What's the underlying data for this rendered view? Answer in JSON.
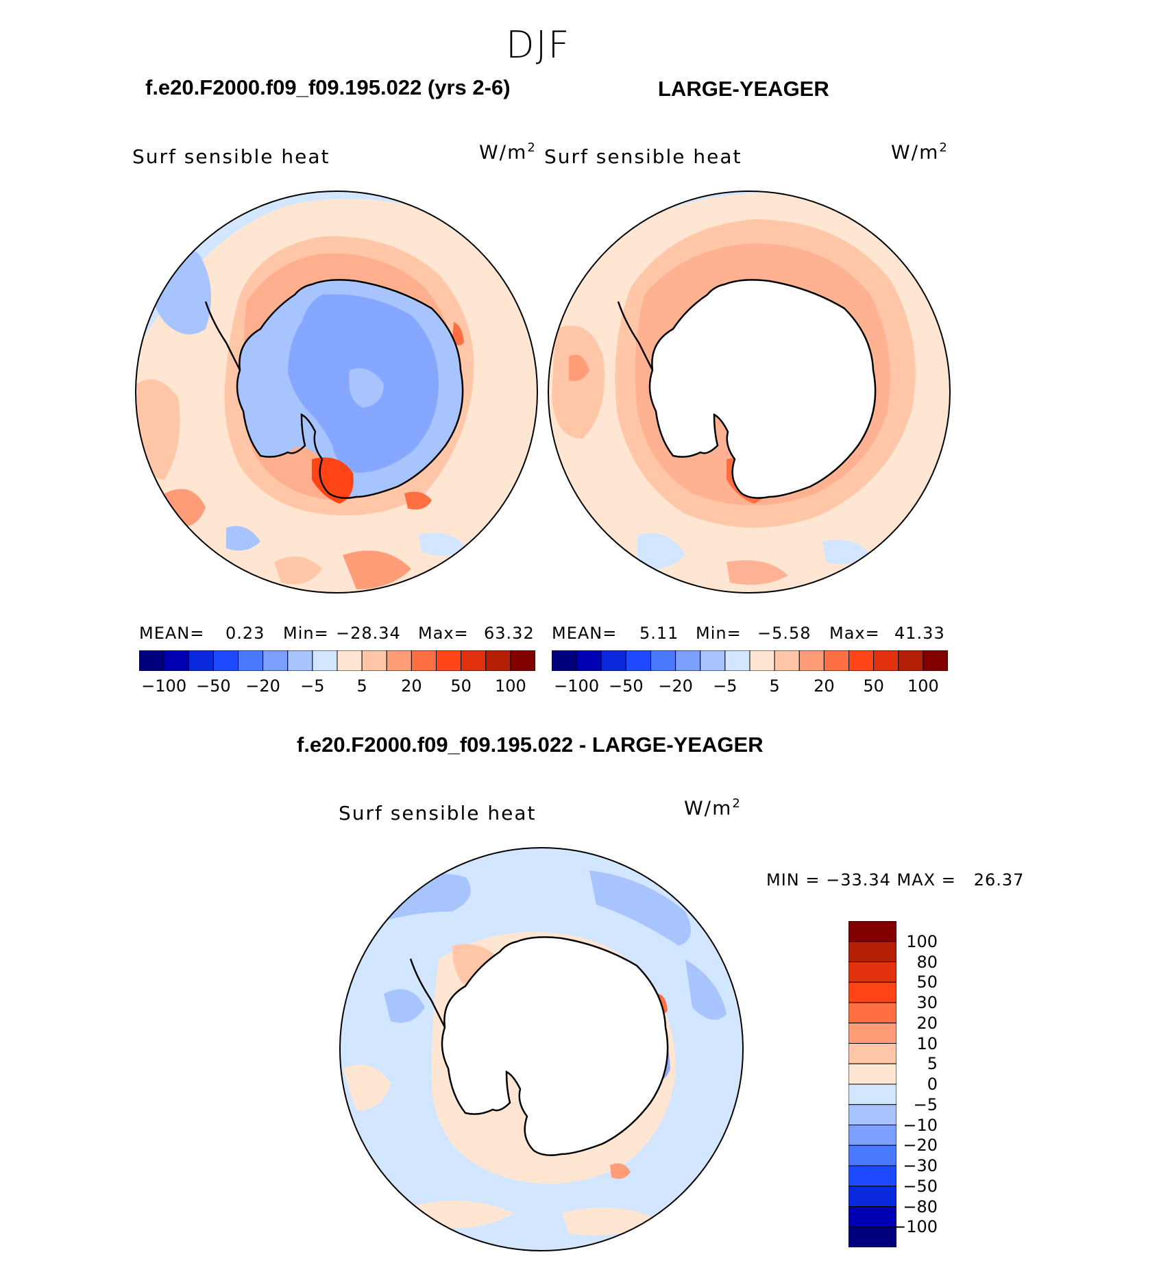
{
  "figure": {
    "suptitle": "DJF"
  },
  "panels": {
    "left": {
      "case_title": "f.e20.F2000.f09_f09.195.022 (yrs 2-6)",
      "variable": "Surf sensible heat",
      "units_base": "W/m",
      "units_exp": "2",
      "mean_label": "MEAN=",
      "mean_value": "0.23",
      "min_label": "Min=",
      "min_value": "−28.34",
      "max_label": "Max=",
      "max_value": "63.32"
    },
    "right": {
      "case_title": "LARGE-YEAGER",
      "variable": "Surf sensible heat",
      "units_base": "W/m",
      "units_exp": "2",
      "mean_label": "MEAN=",
      "mean_value": "5.11",
      "min_label": "Min=",
      "min_value": "−5.58",
      "max_label": "Max=",
      "max_value": "41.33"
    },
    "diff": {
      "case_title": "f.e20.F2000.f09_f09.195.022 - LARGE-YEAGER",
      "variable": "Surf sensible heat",
      "units_base": "W/m",
      "units_exp": "2",
      "minmax_text": "MIN = −33.34 MAX =   26.37"
    }
  },
  "colorbar_top": {
    "colors": [
      "#00007f",
      "#0000b3",
      "#0a28dc",
      "#1e4bff",
      "#4a78ff",
      "#7da0ff",
      "#a8c4ff",
      "#d3e6ff",
      "#ffe6d2",
      "#ffc6a8",
      "#ff9d79",
      "#ff6f42",
      "#ff4515",
      "#e1320d",
      "#b41e05",
      "#820000"
    ],
    "tick_labels": [
      "−100",
      "−50",
      "−20",
      "−5",
      "5",
      "20",
      "50",
      "100"
    ]
  },
  "colorbar_diff": {
    "colors_top_to_bottom": [
      "#820000",
      "#b41e05",
      "#e1320d",
      "#ff4515",
      "#ff6f42",
      "#ff9d79",
      "#ffc6a8",
      "#ffe6d2",
      "#d3e6ff",
      "#a8c4ff",
      "#7da0ff",
      "#4a78ff",
      "#1e4bff",
      "#0a28dc",
      "#0000b3",
      "#00007f"
    ],
    "tick_labels": [
      "100",
      "80",
      "50",
      "30",
      "20",
      "10",
      "5",
      "0",
      "−5",
      "−10",
      "−20",
      "−30",
      "−50",
      "−80",
      "−100"
    ]
  },
  "chart_data": [
    {
      "type": "heatmap",
      "projection": "south polar stereographic",
      "title": "f.e20.F2000.f09_f09.195.022 (yrs 2-6)",
      "variable": "Surf sensible heat",
      "units": "W/m2",
      "season": "DJF",
      "mean": 0.23,
      "min": -28.34,
      "max": 63.32,
      "contour_levels": [
        -100,
        -80,
        -50,
        -30,
        -20,
        -10,
        -5,
        0,
        5,
        10,
        20,
        30,
        50,
        80,
        100
      ]
    },
    {
      "type": "heatmap",
      "projection": "south polar stereographic",
      "title": "LARGE-YEAGER",
      "variable": "Surf sensible heat",
      "units": "W/m2",
      "season": "DJF",
      "mean": 5.11,
      "min": -5.58,
      "max": 41.33,
      "contour_levels": [
        -100,
        -80,
        -50,
        -30,
        -20,
        -10,
        -5,
        0,
        5,
        10,
        20,
        30,
        50,
        80,
        100
      ]
    },
    {
      "type": "heatmap",
      "projection": "south polar stereographic",
      "title": "f.e20.F2000.f09_f09.195.022 - LARGE-YEAGER",
      "variable": "Surf sensible heat",
      "units": "W/m2",
      "season": "DJF",
      "min": -33.34,
      "max": 26.37,
      "contour_levels": [
        -100,
        -80,
        -50,
        -30,
        -20,
        -10,
        -5,
        0,
        5,
        10,
        20,
        30,
        50,
        80,
        100
      ]
    }
  ]
}
